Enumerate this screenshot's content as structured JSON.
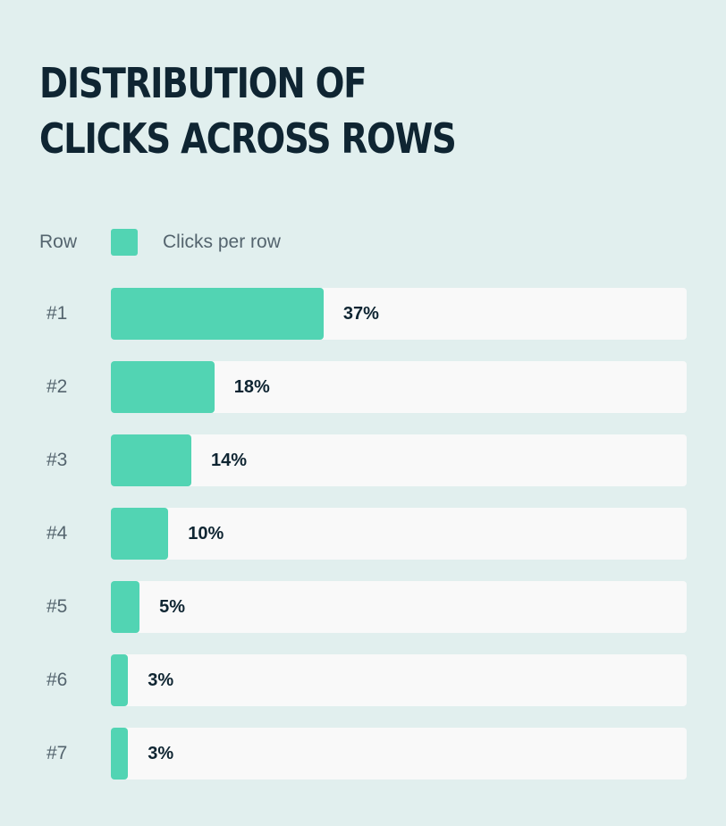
{
  "title": "Distribution of clicks across rows",
  "legend": {
    "row_label": "Row",
    "series_label": "Clicks per row"
  },
  "colors": {
    "background": "#e1efee",
    "bar": "#52d4b3",
    "track": "#f9f9f9",
    "title_text": "#0f2532",
    "label_text": "#54646e"
  },
  "chart_data": {
    "type": "bar",
    "orientation": "horizontal",
    "title": "Distribution of clicks across rows",
    "ylabel": "Row",
    "categories": [
      "#1",
      "#2",
      "#3",
      "#4",
      "#5",
      "#6",
      "#7"
    ],
    "series": [
      {
        "name": "Clicks per row",
        "values": [
          37,
          18,
          14,
          10,
          5,
          3,
          3
        ],
        "labels": [
          "37%",
          "18%",
          "14%",
          "10%",
          "5%",
          "3%",
          "3%"
        ]
      }
    ],
    "xlim": [
      0,
      100
    ],
    "unit": "%",
    "grid": false,
    "legend_position": "top-left"
  }
}
